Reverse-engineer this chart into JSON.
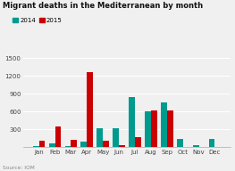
{
  "title": "Migrant deaths in the Mediterranean by month",
  "months": [
    "Jan",
    "Feb",
    "Mar",
    "Apr",
    "May",
    "Jun",
    "Jul",
    "Aug",
    "Sep",
    "Oct",
    "Nov",
    "Dec"
  ],
  "data_2014": [
    15,
    60,
    10,
    90,
    310,
    310,
    850,
    600,
    760,
    130,
    30,
    130
  ],
  "data_2015": [
    100,
    340,
    120,
    1260,
    100,
    30,
    160,
    620,
    620,
    0,
    0,
    0
  ],
  "color_2014": "#009a8e",
  "color_2015": "#cc0000",
  "ylim": [
    0,
    1500
  ],
  "yticks": [
    300,
    600,
    900,
    1200,
    1500
  ],
  "source": "Source: IOM",
  "background": "#f0f0f0",
  "bar_width": 0.38
}
